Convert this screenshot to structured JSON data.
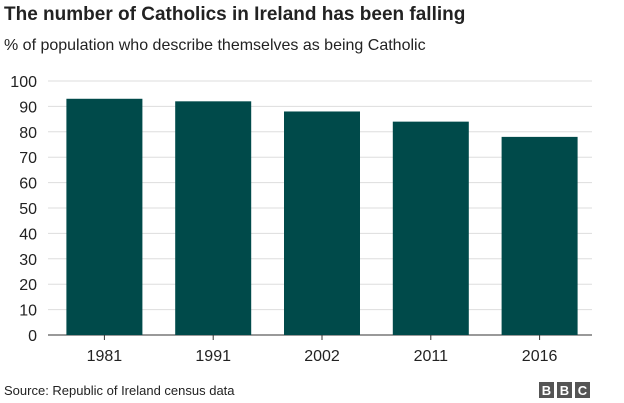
{
  "header": {
    "title": "The number of Catholics in Ireland has been falling",
    "subtitle": "% of population who describe themselves as being Catholic"
  },
  "footer": {
    "source": "Source: Republic of Ireland census data",
    "logo_letters": [
      "B",
      "B",
      "C"
    ]
  },
  "colors": {
    "bar": "#004a4a",
    "grid": "#dddddd",
    "axis": "#333333"
  },
  "chart_data": {
    "type": "bar",
    "categories": [
      "1981",
      "1991",
      "2002",
      "2011",
      "2016"
    ],
    "values": [
      93,
      92,
      88,
      84,
      78
    ],
    "ylim": [
      0,
      100
    ],
    "yticks": [
      0,
      10,
      20,
      30,
      40,
      50,
      60,
      70,
      80,
      90,
      100
    ],
    "title": "The number of Catholics in Ireland has been falling",
    "subtitle": "% of population who describe themselves as being Catholic",
    "xlabel": "",
    "ylabel": "",
    "grid": true
  }
}
